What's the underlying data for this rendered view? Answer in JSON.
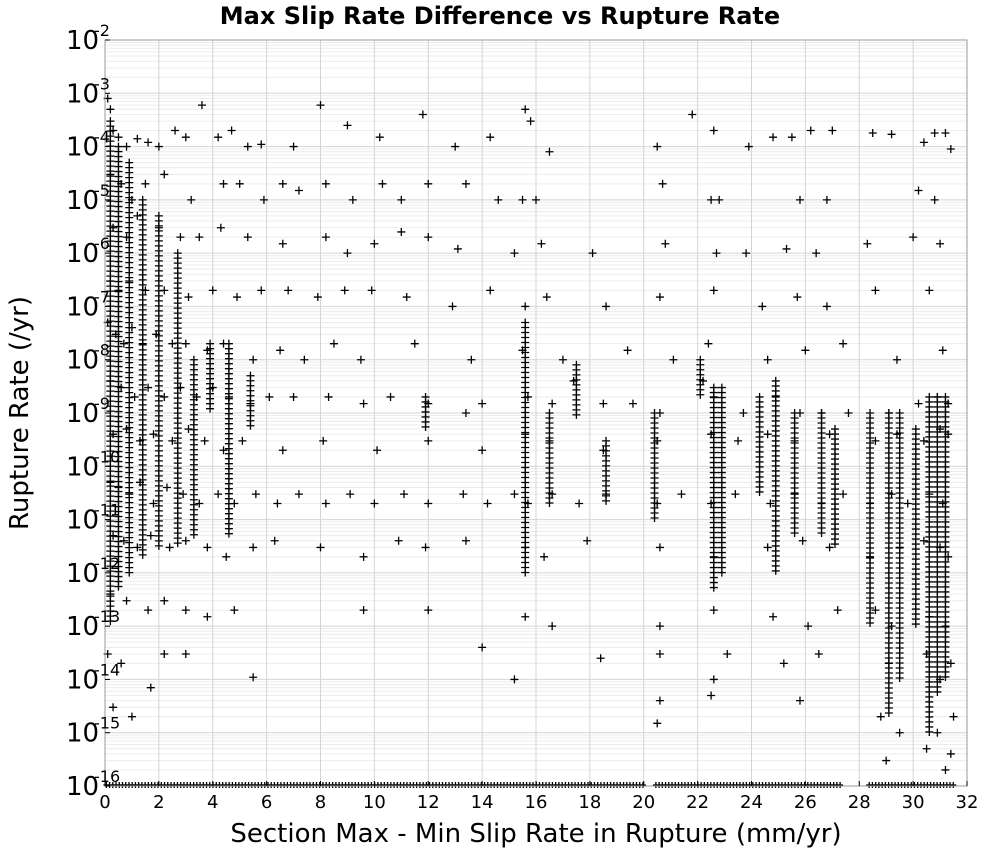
{
  "chart_data": {
    "type": "scatter",
    "title": "Max Slip Rate Difference vs Rupture Rate",
    "xlabel": "Section Max - Min Slip Rate in Rupture (mm/yr)",
    "ylabel": "Rupture Rate (/yr)",
    "xlim": [
      0,
      32
    ],
    "ylim": [
      1e-16,
      0.01
    ],
    "yscale": "log",
    "grid": true,
    "marker": "+",
    "marker_color": "#000000",
    "x_ticks": [
      "0",
      "2",
      "4",
      "6",
      "8",
      "10",
      "12",
      "14",
      "16",
      "18",
      "20",
      "22",
      "24",
      "26",
      "28",
      "30",
      "32"
    ],
    "y_ticks": [
      {
        "base": "10",
        "exp": "-2"
      },
      {
        "base": "10",
        "exp": "-3"
      },
      {
        "base": "10",
        "exp": "-4"
      },
      {
        "base": "10",
        "exp": "-5"
      },
      {
        "base": "10",
        "exp": "-6"
      },
      {
        "base": "10",
        "exp": "-7"
      },
      {
        "base": "10",
        "exp": "-8"
      },
      {
        "base": "10",
        "exp": "-9"
      },
      {
        "base": "10",
        "exp": "-10"
      },
      {
        "base": "10",
        "exp": "-11"
      },
      {
        "base": "10",
        "exp": "-12"
      },
      {
        "base": "10",
        "exp": "-13"
      },
      {
        "base": "10",
        "exp": "-14"
      },
      {
        "base": "10",
        "exp": "-15"
      },
      {
        "base": "10",
        "exp": "-16"
      }
    ],
    "points": [
      [
        0.1,
        0.0008
      ],
      [
        0.2,
        0.0005
      ],
      [
        0.3,
        0.0002
      ],
      [
        0.5,
        0.00015
      ],
      [
        0.8,
        0.0001
      ],
      [
        1.2,
        0.00014
      ],
      [
        1.6,
        0.00012
      ],
      [
        2.0,
        0.0001
      ],
      [
        2.6,
        0.0002
      ],
      [
        3.0,
        0.00015
      ],
      [
        3.6,
        0.0006
      ],
      [
        4.2,
        0.00015
      ],
      [
        4.7,
        0.0002
      ],
      [
        5.3,
        0.0001
      ],
      [
        5.8,
        0.00011
      ],
      [
        7.0,
        0.0001
      ],
      [
        8.0,
        0.0006
      ],
      [
        9.0,
        0.00025
      ],
      [
        10.2,
        0.00015
      ],
      [
        11.8,
        0.0004
      ],
      [
        13.0,
        0.0001
      ],
      [
        14.3,
        0.00015
      ],
      [
        15.6,
        0.0005
      ],
      [
        15.8,
        0.0003
      ],
      [
        16.5,
        8e-05
      ],
      [
        20.5,
        0.0001
      ],
      [
        21.8,
        0.0004
      ],
      [
        22.6,
        0.0002
      ],
      [
        23.9,
        0.0001
      ],
      [
        24.8,
        0.00015
      ],
      [
        25.5,
        0.00015
      ],
      [
        26.2,
        0.0002
      ],
      [
        27.0,
        0.0002
      ],
      [
        28.5,
        0.00018
      ],
      [
        29.2,
        0.00017
      ],
      [
        30.4,
        0.00012
      ],
      [
        30.8,
        0.00018
      ],
      [
        31.2,
        0.00018
      ],
      [
        31.4,
        9e-05
      ],
      [
        0.2,
        3e-05
      ],
      [
        0.6,
        2e-05
      ],
      [
        1.0,
        1e-05
      ],
      [
        1.5,
        2e-05
      ],
      [
        2.2,
        3e-05
      ],
      [
        3.2,
        1e-05
      ],
      [
        4.4,
        2e-05
      ],
      [
        5.0,
        2e-05
      ],
      [
        5.9,
        1e-05
      ],
      [
        6.6,
        2e-05
      ],
      [
        7.2,
        1.5e-05
      ],
      [
        8.2,
        2e-05
      ],
      [
        9.2,
        1e-05
      ],
      [
        10.3,
        2e-05
      ],
      [
        11.0,
        1e-05
      ],
      [
        12.0,
        2e-05
      ],
      [
        13.4,
        2e-05
      ],
      [
        14.6,
        1e-05
      ],
      [
        15.5,
        1e-05
      ],
      [
        16.0,
        1e-05
      ],
      [
        20.7,
        2e-05
      ],
      [
        22.5,
        1e-05
      ],
      [
        22.8,
        1e-05
      ],
      [
        25.8,
        1e-05
      ],
      [
        26.8,
        1e-05
      ],
      [
        30.2,
        1.5e-05
      ],
      [
        30.8,
        1e-05
      ],
      [
        0.3,
        3e-06
      ],
      [
        0.8,
        2e-06
      ],
      [
        1.2,
        5e-06
      ],
      [
        2.0,
        3e-06
      ],
      [
        2.8,
        2e-06
      ],
      [
        3.5,
        2e-06
      ],
      [
        4.3,
        3e-06
      ],
      [
        5.3,
        2e-06
      ],
      [
        6.6,
        1.5e-06
      ],
      [
        8.2,
        2e-06
      ],
      [
        9.0,
        1e-06
      ],
      [
        10.0,
        1.5e-06
      ],
      [
        11.0,
        2.5e-06
      ],
      [
        12.0,
        2e-06
      ],
      [
        13.1,
        1.2e-06
      ],
      [
        15.2,
        1e-06
      ],
      [
        16.2,
        1.5e-06
      ],
      [
        18.1,
        1e-06
      ],
      [
        20.8,
        1.5e-06
      ],
      [
        22.7,
        1e-06
      ],
      [
        23.8,
        1e-06
      ],
      [
        25.3,
        1.2e-06
      ],
      [
        26.4,
        1e-06
      ],
      [
        28.3,
        1.5e-06
      ],
      [
        30.0,
        2e-06
      ],
      [
        31.0,
        1.5e-06
      ],
      [
        0.2,
        3e-07
      ],
      [
        0.5,
        2e-07
      ],
      [
        0.9,
        3e-07
      ],
      [
        1.5,
        2e-07
      ],
      [
        2.2,
        2e-07
      ],
      [
        3.1,
        1.5e-07
      ],
      [
        4.0,
        2e-07
      ],
      [
        4.9,
        1.5e-07
      ],
      [
        5.8,
        2e-07
      ],
      [
        6.8,
        2e-07
      ],
      [
        7.9,
        1.5e-07
      ],
      [
        8.9,
        2e-07
      ],
      [
        9.9,
        2e-07
      ],
      [
        11.2,
        1.5e-07
      ],
      [
        12.9,
        1e-07
      ],
      [
        14.3,
        2e-07
      ],
      [
        15.6,
        1e-07
      ],
      [
        16.4,
        1.5e-07
      ],
      [
        18.6,
        1e-07
      ],
      [
        20.6,
        1.5e-07
      ],
      [
        22.6,
        2e-07
      ],
      [
        24.4,
        1e-07
      ],
      [
        25.7,
        1.5e-07
      ],
      [
        26.8,
        1e-07
      ],
      [
        28.6,
        2e-07
      ],
      [
        30.6,
        2e-07
      ],
      [
        0.1,
        5e-08
      ],
      [
        0.4,
        3e-08
      ],
      [
        0.7,
        2e-08
      ],
      [
        1.0,
        4e-08
      ],
      [
        1.4,
        2e-08
      ],
      [
        1.9,
        3e-08
      ],
      [
        2.5,
        2e-08
      ],
      [
        3.0,
        2e-08
      ],
      [
        3.8,
        1.5e-08
      ],
      [
        4.4,
        2e-08
      ],
      [
        5.5,
        1e-08
      ],
      [
        6.5,
        1.5e-08
      ],
      [
        7.4,
        1e-08
      ],
      [
        8.5,
        2e-08
      ],
      [
        9.5,
        1e-08
      ],
      [
        11.5,
        2e-08
      ],
      [
        13.6,
        1e-08
      ],
      [
        15.5,
        1.5e-08
      ],
      [
        17.0,
        1e-08
      ],
      [
        19.4,
        1.5e-08
      ],
      [
        21.1,
        1e-08
      ],
      [
        22.4,
        2e-08
      ],
      [
        24.6,
        1e-08
      ],
      [
        26.0,
        1.5e-08
      ],
      [
        27.4,
        2e-08
      ],
      [
        29.4,
        1e-08
      ],
      [
        31.1,
        1.5e-08
      ],
      [
        0.2,
        4e-09
      ],
      [
        0.6,
        3e-09
      ],
      [
        1.1,
        2e-09
      ],
      [
        1.6,
        3e-09
      ],
      [
        2.2,
        2e-09
      ],
      [
        2.8,
        3e-09
      ],
      [
        3.4,
        2e-09
      ],
      [
        4.0,
        3e-09
      ],
      [
        4.6,
        2e-09
      ],
      [
        5.4,
        1.5e-09
      ],
      [
        6.1,
        2e-09
      ],
      [
        7.0,
        2e-09
      ],
      [
        8.3,
        2e-09
      ],
      [
        9.6,
        1.5e-09
      ],
      [
        10.6,
        2e-09
      ],
      [
        12.0,
        1.5e-09
      ],
      [
        13.4,
        1e-09
      ],
      [
        14.0,
        1.5e-09
      ],
      [
        15.7,
        2e-09
      ],
      [
        16.6,
        1.5e-09
      ],
      [
        17.4,
        4e-09
      ],
      [
        18.5,
        1.5e-09
      ],
      [
        19.6,
        1.5e-09
      ],
      [
        20.6,
        1e-09
      ],
      [
        22.2,
        4e-09
      ],
      [
        22.6,
        2e-09
      ],
      [
        23.7,
        1e-09
      ],
      [
        24.9,
        2e-09
      ],
      [
        25.8,
        1e-09
      ],
      [
        26.6,
        1e-09
      ],
      [
        27.6,
        1e-09
      ],
      [
        29.1,
        1e-09
      ],
      [
        30.2,
        1.5e-09
      ],
      [
        30.9,
        2e-09
      ],
      [
        31.3,
        1.5e-09
      ],
      [
        0.3,
        4e-10
      ],
      [
        0.8,
        5e-10
      ],
      [
        1.3,
        3e-10
      ],
      [
        1.8,
        4e-10
      ],
      [
        2.5,
        3e-10
      ],
      [
        3.1,
        5e-10
      ],
      [
        3.7,
        3e-10
      ],
      [
        4.4,
        2e-10
      ],
      [
        5.1,
        3e-10
      ],
      [
        6.6,
        2e-10
      ],
      [
        8.1,
        3e-10
      ],
      [
        10.1,
        2e-10
      ],
      [
        12.0,
        3e-10
      ],
      [
        14.0,
        2e-10
      ],
      [
        15.6,
        4e-10
      ],
      [
        16.5,
        3e-10
      ],
      [
        18.5,
        2e-10
      ],
      [
        20.5,
        3e-10
      ],
      [
        22.5,
        4e-10
      ],
      [
        23.5,
        3e-10
      ],
      [
        24.6,
        4e-10
      ],
      [
        25.6,
        3e-10
      ],
      [
        26.9,
        4e-10
      ],
      [
        28.6,
        3e-10
      ],
      [
        29.4,
        4e-10
      ],
      [
        30.4,
        3e-10
      ],
      [
        31.0,
        5e-10
      ],
      [
        31.3,
        4e-10
      ],
      [
        0.2,
        5e-11
      ],
      [
        0.5,
        4e-11
      ],
      [
        0.9,
        3e-11
      ],
      [
        1.3,
        5e-11
      ],
      [
        1.8,
        2e-11
      ],
      [
        2.3,
        4e-11
      ],
      [
        2.9,
        3e-11
      ],
      [
        3.5,
        2e-11
      ],
      [
        4.2,
        3e-11
      ],
      [
        4.8,
        2e-11
      ],
      [
        5.6,
        3e-11
      ],
      [
        6.4,
        2e-11
      ],
      [
        7.2,
        3e-11
      ],
      [
        8.2,
        2e-11
      ],
      [
        9.1,
        3e-11
      ],
      [
        10.0,
        2e-11
      ],
      [
        11.1,
        3e-11
      ],
      [
        12.0,
        2e-11
      ],
      [
        13.3,
        3e-11
      ],
      [
        14.2,
        2e-11
      ],
      [
        15.2,
        3e-11
      ],
      [
        15.7,
        2e-11
      ],
      [
        16.6,
        3e-11
      ],
      [
        17.6,
        2e-11
      ],
      [
        18.6,
        3e-11
      ],
      [
        20.5,
        2e-11
      ],
      [
        21.4,
        3e-11
      ],
      [
        22.5,
        2e-11
      ],
      [
        23.4,
        3e-11
      ],
      [
        24.7,
        2e-11
      ],
      [
        25.6,
        3e-11
      ],
      [
        26.6,
        2e-11
      ],
      [
        27.4,
        3e-11
      ],
      [
        28.4,
        2e-11
      ],
      [
        29.2,
        3e-11
      ],
      [
        29.8,
        2e-11
      ],
      [
        30.6,
        3e-11
      ],
      [
        31.1,
        2e-11
      ],
      [
        0.3,
        5e-12
      ],
      [
        0.7,
        4e-12
      ],
      [
        1.2,
        3e-12
      ],
      [
        1.7,
        5e-12
      ],
      [
        2.4,
        3e-12
      ],
      [
        3.0,
        4e-12
      ],
      [
        3.8,
        3e-12
      ],
      [
        4.5,
        2e-12
      ],
      [
        5.5,
        3e-12
      ],
      [
        6.3,
        4e-12
      ],
      [
        8.0,
        3e-12
      ],
      [
        9.6,
        2e-12
      ],
      [
        10.9,
        4e-12
      ],
      [
        11.9,
        3e-12
      ],
      [
        13.4,
        4e-12
      ],
      [
        15.6,
        3e-12
      ],
      [
        16.3,
        2e-12
      ],
      [
        17.9,
        4e-12
      ],
      [
        20.6,
        3e-12
      ],
      [
        22.6,
        2e-12
      ],
      [
        24.6,
        3e-12
      ],
      [
        25.9,
        4e-12
      ],
      [
        26.9,
        3e-12
      ],
      [
        28.4,
        2e-12
      ],
      [
        29.5,
        3e-12
      ],
      [
        30.4,
        4e-12
      ],
      [
        31.0,
        3e-12
      ],
      [
        31.3,
        2e-12
      ],
      [
        0.2,
        4e-13
      ],
      [
        0.8,
        3e-13
      ],
      [
        1.6,
        2e-13
      ],
      [
        2.2,
        3e-13
      ],
      [
        3.0,
        2e-13
      ],
      [
        3.8,
        1.5e-13
      ],
      [
        4.8,
        2e-13
      ],
      [
        9.6,
        2e-13
      ],
      [
        12.0,
        2e-13
      ],
      [
        15.6,
        1.5e-13
      ],
      [
        16.6,
        1e-13
      ],
      [
        20.6,
        1e-13
      ],
      [
        22.6,
        2e-13
      ],
      [
        24.8,
        1.5e-13
      ],
      [
        26.1,
        1e-13
      ],
      [
        27.2,
        2e-13
      ],
      [
        28.6,
        2e-13
      ],
      [
        29.2,
        1e-13
      ],
      [
        30.6,
        1.5e-13
      ],
      [
        31.2,
        1e-13
      ],
      [
        0.1,
        3e-14
      ],
      [
        0.6,
        2e-14
      ],
      [
        2.2,
        3e-14
      ],
      [
        3.0,
        3e-14
      ],
      [
        5.5,
        1.1e-14
      ],
      [
        14.0,
        4e-14
      ],
      [
        15.2,
        1e-14
      ],
      [
        18.4,
        2.5e-14
      ],
      [
        20.6,
        3e-14
      ],
      [
        22.6,
        1e-14
      ],
      [
        23.1,
        3e-14
      ],
      [
        25.2,
        2e-14
      ],
      [
        26.5,
        3e-14
      ],
      [
        29.1,
        2e-14
      ],
      [
        30.5,
        3e-14
      ],
      [
        31.0,
        1e-14
      ],
      [
        31.4,
        2e-14
      ],
      [
        0.3,
        3e-15
      ],
      [
        1.0,
        2e-15
      ],
      [
        1.7,
        7e-15
      ],
      [
        20.5,
        1.5e-15
      ],
      [
        20.6,
        4e-15
      ],
      [
        22.5,
        5e-15
      ],
      [
        25.8,
        4e-15
      ],
      [
        28.8,
        2e-15
      ],
      [
        29.5,
        1e-15
      ],
      [
        30.9,
        1e-15
      ],
      [
        31.5,
        2e-15
      ],
      [
        29.0,
        3e-16
      ],
      [
        30.5,
        5e-16
      ],
      [
        31.2,
        2e-16
      ],
      [
        31.4,
        4e-16
      ]
    ],
    "columns": [
      {
        "x": 0.2,
        "ymin": 1e-13,
        "ymax": 0.0003
      },
      {
        "x": 0.5,
        "ymin": 5e-13,
        "ymax": 0.0001
      },
      {
        "x": 0.9,
        "ymin": 1e-12,
        "ymax": 5e-05
      },
      {
        "x": 1.4,
        "ymin": 2e-12,
        "ymax": 1e-05
      },
      {
        "x": 2.0,
        "ymin": 3e-12,
        "ymax": 5e-06
      },
      {
        "x": 2.7,
        "ymin": 3e-12,
        "ymax": 1e-06
      },
      {
        "x": 3.3,
        "ymin": 5e-12,
        "ymax": 1e-08
      },
      {
        "x": 3.9,
        "ymin": 1e-09,
        "ymax": 2e-08
      },
      {
        "x": 4.6,
        "ymin": 5e-12,
        "ymax": 2e-08
      },
      {
        "x": 5.4,
        "ymin": 5e-10,
        "ymax": 5e-09
      },
      {
        "x": 11.9,
        "ymin": 5e-10,
        "ymax": 2e-09
      },
      {
        "x": 15.6,
        "ymin": 1e-12,
        "ymax": 5e-08
      },
      {
        "x": 16.5,
        "ymin": 2e-11,
        "ymax": 1e-09
      },
      {
        "x": 17.5,
        "ymin": 8e-10,
        "ymax": 8e-09
      },
      {
        "x": 18.6,
        "ymin": 2e-11,
        "ymax": 3e-10
      },
      {
        "x": 20.4,
        "ymin": 1e-11,
        "ymax": 1e-09
      },
      {
        "x": 22.1,
        "ymin": 2e-09,
        "ymax": 1e-08
      },
      {
        "x": 22.6,
        "ymin": 5e-13,
        "ymax": 3e-09
      },
      {
        "x": 22.9,
        "ymin": 1e-12,
        "ymax": 3e-09
      },
      {
        "x": 24.3,
        "ymin": 3e-11,
        "ymax": 2e-09
      },
      {
        "x": 24.9,
        "ymin": 1e-12,
        "ymax": 4e-09
      },
      {
        "x": 25.6,
        "ymin": 5e-12,
        "ymax": 1e-09
      },
      {
        "x": 26.6,
        "ymin": 5e-12,
        "ymax": 1e-09
      },
      {
        "x": 27.1,
        "ymin": 3e-12,
        "ymax": 5e-10
      },
      {
        "x": 28.4,
        "ymin": 1e-13,
        "ymax": 1e-09
      },
      {
        "x": 29.1,
        "ymin": 2e-15,
        "ymax": 1e-09
      },
      {
        "x": 29.5,
        "ymin": 1e-14,
        "ymax": 1e-09
      },
      {
        "x": 30.1,
        "ymin": 1e-13,
        "ymax": 5e-10
      },
      {
        "x": 30.6,
        "ymin": 1e-15,
        "ymax": 2e-09
      },
      {
        "x": 30.9,
        "ymin": 5e-15,
        "ymax": 2e-09
      },
      {
        "x": 31.2,
        "ymin": 1e-14,
        "ymax": 2e-09
      }
    ],
    "floor_y": 1e-16
  }
}
